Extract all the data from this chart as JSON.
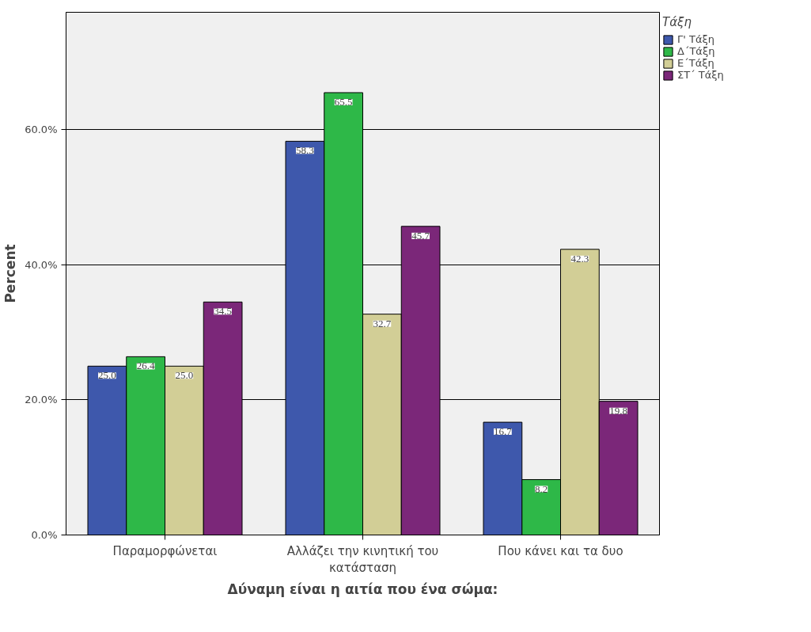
{
  "chart_data": {
    "type": "bar",
    "xlabel": "Δύναμη είναι η αιτία που ένα σώμα:",
    "ylabel": "Percent",
    "legend_title": "Τάξη",
    "categories": [
      "Παραμορφώνεται",
      "Αλλάζει την κινητική του κατάσταση",
      "Που κάνει και τα δυο"
    ],
    "series": [
      {
        "name": "Γ' Τάξη",
        "color": "#3e58ac",
        "values": [
          25.0,
          58.3,
          16.7
        ],
        "value_labels": [
          "25.0",
          "58.3",
          "16.7"
        ]
      },
      {
        "name": "Δ΄Τάξη",
        "color": "#2eb848",
        "values": [
          26.4,
          65.5,
          8.2
        ],
        "value_labels": [
          "26.4",
          "65.5",
          "8.2"
        ]
      },
      {
        "name": "Ε΄Τάξη",
        "color": "#d2ce96",
        "values": [
          25.0,
          32.7,
          42.3
        ],
        "value_labels": [
          "25.0",
          "32.7",
          "42.3"
        ]
      },
      {
        "name": "ΣΤ΄ Τάξη",
        "color": "#7b2779",
        "values": [
          34.5,
          45.7,
          19.8
        ],
        "value_labels": [
          "34.5",
          "45.7",
          "19.8"
        ]
      }
    ],
    "ylim": [
      0,
      77.4
    ],
    "yticks": [
      {
        "value": 0,
        "label": "0.0%"
      },
      {
        "value": 20,
        "label": "20.0%"
      },
      {
        "value": 40,
        "label": "40.0%"
      },
      {
        "value": 60,
        "label": "60.0%"
      }
    ],
    "grid": "y",
    "legend": "top right"
  }
}
